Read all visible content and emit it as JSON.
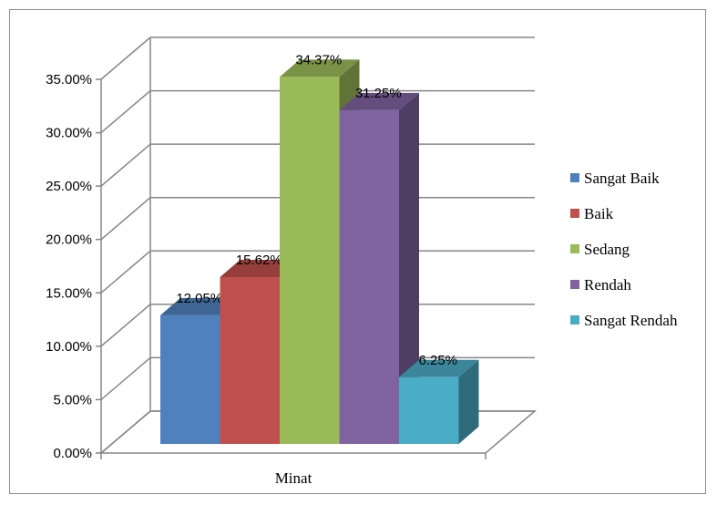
{
  "chart_data": {
    "type": "bar",
    "title": "",
    "xlabel": "",
    "ylabel": "",
    "categories": [
      "Minat"
    ],
    "series": [
      {
        "name": "Sangat Baik",
        "values": [
          12.05
        ],
        "label": "12.05%",
        "color": "#4f81bd"
      },
      {
        "name": "Baik",
        "values": [
          15.62
        ],
        "label": "15.62%",
        "color": "#c0504d"
      },
      {
        "name": "Sedang",
        "values": [
          34.37
        ],
        "label": "34.37%",
        "color": "#9bbb59"
      },
      {
        "name": "Rendah",
        "values": [
          31.25
        ],
        "label": "31.25%",
        "color": "#8064a2"
      },
      {
        "name": "Sangat Rendah",
        "values": [
          6.25
        ],
        "label": "6.25%",
        "color": "#4bacc6"
      }
    ],
    "ylim": [
      0,
      35
    ],
    "yticks": [
      "0.00%",
      "5.00%",
      "10.00%",
      "15.00%",
      "20.00%",
      "25.00%",
      "30.00%",
      "35.00%"
    ],
    "grid": true,
    "three_d": true,
    "legend_position": "right"
  }
}
